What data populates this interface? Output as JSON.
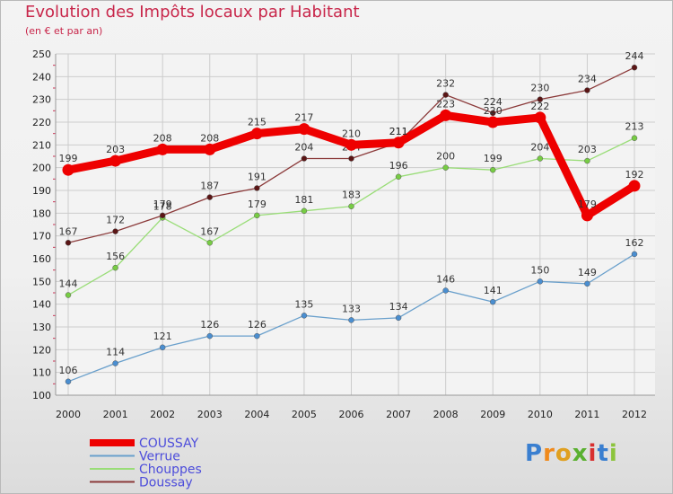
{
  "header": {
    "title": "Evolution des Impôts locaux par Habitant",
    "subtitle": "(en € et par an)"
  },
  "logo": {
    "text": "Proxiti"
  },
  "chart_data": {
    "type": "line",
    "title": "Evolution des Impôts locaux par Habitant",
    "subtitle": "(en € et par an)",
    "xlabel": "",
    "ylabel": "",
    "ylim": [
      100,
      250
    ],
    "y_ticks": [
      100,
      110,
      120,
      130,
      140,
      150,
      160,
      170,
      180,
      190,
      200,
      210,
      220,
      230,
      240,
      250
    ],
    "x": [
      "2000",
      "2001",
      "2002",
      "2003",
      "2004",
      "2005",
      "2006",
      "2007",
      "2008",
      "2009",
      "2010",
      "2011",
      "2012"
    ],
    "legend_position": "bottom-left",
    "series": [
      {
        "name": "COUSSAY",
        "color": "#ee0000",
        "point_color": "#ee0000",
        "emphasis": true,
        "values": [
          199,
          203,
          208,
          208,
          215,
          217,
          210,
          211,
          223,
          220,
          222,
          179,
          192
        ]
      },
      {
        "name": "Verrue",
        "color": "#6aa0cc",
        "point_color": "#4a8ed0",
        "values": [
          106,
          114,
          121,
          126,
          126,
          135,
          133,
          134,
          146,
          141,
          150,
          149,
          162
        ]
      },
      {
        "name": "Chouppes",
        "color": "#99dd77",
        "point_color": "#77cc44",
        "values": [
          144,
          156,
          178,
          167,
          179,
          181,
          183,
          196,
          200,
          199,
          204,
          203,
          213
        ]
      },
      {
        "name": "Doussay",
        "color": "#8b3a3a",
        "point_color": "#5a1515",
        "values": [
          167,
          172,
          179,
          187,
          191,
          204,
          204,
          211,
          232,
          224,
          230,
          234,
          244
        ]
      }
    ]
  }
}
